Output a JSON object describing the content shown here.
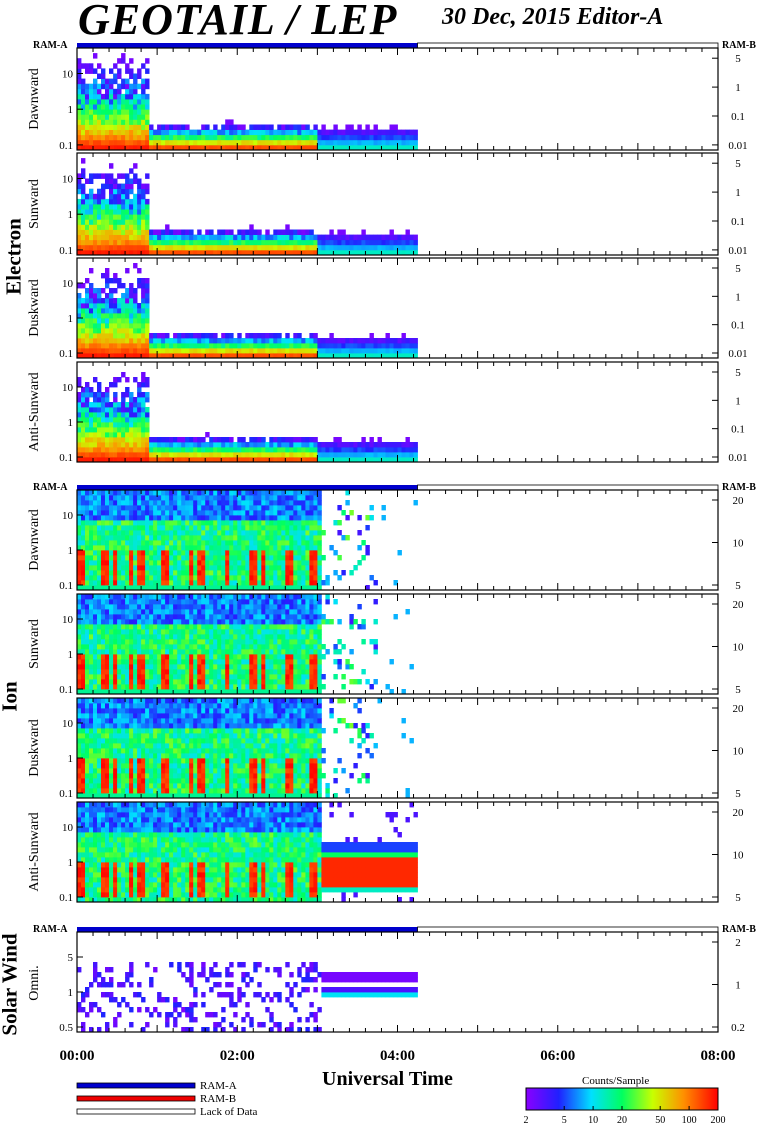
{
  "header": {
    "title": "GEOTAIL / LEP",
    "subtitle": "30 Dec, 2015   Editor-A"
  },
  "chart_data": {
    "type": "heatmap",
    "xlabel": "Universal Time",
    "x_ticks": [
      "00:00",
      "02:00",
      "04:00",
      "06:00",
      "08:00"
    ],
    "x_range_hours": [
      0,
      8
    ],
    "data_end_hours": 4.25,
    "groups": [
      {
        "name": "Electron",
        "panels": [
          {
            "label": "Dawnward",
            "left_ticks": [
              "10",
              "1",
              "0.1"
            ],
            "right_ticks": [
              "5",
              "1",
              "0.1",
              "0.01"
            ]
          },
          {
            "label": "Sunward",
            "left_ticks": [
              "10",
              "1",
              "0.1"
            ],
            "right_ticks": [
              "5",
              "1",
              "0.1",
              "0.01"
            ]
          },
          {
            "label": "Duskward",
            "left_ticks": [
              "10",
              "1",
              "0.1"
            ],
            "right_ticks": [
              "5",
              "1",
              "0.1",
              "0.01"
            ]
          },
          {
            "label": "Anti-Sunward",
            "left_ticks": [
              "10",
              "1",
              "0.1"
            ],
            "right_ticks": [
              "5",
              "1",
              "0.1",
              "0.01"
            ]
          }
        ]
      },
      {
        "name": "Ion",
        "panels": [
          {
            "label": "Dawnward",
            "left_ticks": [
              "10",
              "1",
              "0.1"
            ],
            "right_ticks": [
              "20",
              "10",
              "5"
            ]
          },
          {
            "label": "Sunward",
            "left_ticks": [
              "10",
              "1",
              "0.1"
            ],
            "right_ticks": [
              "20",
              "10",
              "5"
            ]
          },
          {
            "label": "Duskward",
            "left_ticks": [
              "10",
              "1",
              "0.1"
            ],
            "right_ticks": [
              "20",
              "10",
              "5"
            ]
          },
          {
            "label": "Anti-Sunward",
            "left_ticks": [
              "10",
              "1",
              "0.1"
            ],
            "right_ticks": [
              "20",
              "10",
              "5"
            ]
          }
        ]
      },
      {
        "name": "Solar Wind",
        "panels": [
          {
            "label": "Omni.",
            "left_ticks": [
              "5",
              "1",
              "0.5"
            ],
            "right_ticks": [
              "2",
              "1",
              "0.2"
            ]
          }
        ]
      }
    ],
    "ram_labels": {
      "left": "RAM-A",
      "right": "RAM-B"
    },
    "legend": [
      {
        "label": "RAM-A",
        "color": "#0000cc"
      },
      {
        "label": "RAM-B",
        "color": "#ee0000"
      },
      {
        "label": "Lack of Data",
        "color": "#ffffff"
      }
    ],
    "colorbar": {
      "title": "Counts/Sample",
      "ticks": [
        "2",
        "5",
        "10",
        "20",
        "50",
        "100",
        "200"
      ],
      "scale": "log",
      "range": [
        2,
        200
      ]
    }
  }
}
